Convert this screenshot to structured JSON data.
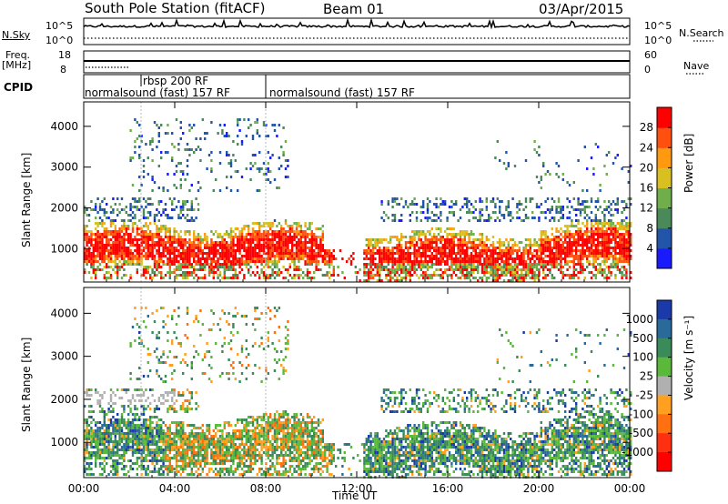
{
  "header": {
    "station": "South Pole Station (fitACF)",
    "beam": "Beam 01",
    "date": "03/Apr/2015"
  },
  "top_panels": {
    "nsky_label": "N.Sky",
    "nsky_ticks": [
      "10^5",
      "10^0"
    ],
    "nsearch_label": "N.Search",
    "nsearch_ticks": [
      "10^5",
      "10^0"
    ],
    "freq_label": "Freq.",
    "freq_unit": "[MHz]",
    "freq_ticks": [
      "18",
      "8"
    ],
    "nave_label": "Nave",
    "nave_ticks": [
      "60",
      "0"
    ],
    "cpid_label": "CPID",
    "cpid_segments": [
      {
        "label": "normalsound (fast) 157 RF"
      },
      {
        "label": "rbsp 200 RF"
      },
      {
        "label": "normalsound (fast) 157 RF"
      }
    ]
  },
  "chart_data": [
    {
      "type": "heatmap",
      "title": "",
      "xlabel": "",
      "ylabel": "Slant Range [km]",
      "x_ticks": [
        "00:00",
        "04:00",
        "08:00",
        "12:00",
        "16:00",
        "20:00",
        "00:00"
      ],
      "xlim_hours": [
        0,
        24
      ],
      "y_ticks": [
        1000,
        2000,
        3000,
        4000
      ],
      "ylim": [
        180,
        4600
      ],
      "colorbar": {
        "label": "Power [dB]",
        "ticks": [
          4,
          8,
          12,
          16,
          20,
          24,
          28
        ],
        "colors": [
          "#1a1aff",
          "#2255aa",
          "#4a8a5a",
          "#6fae4a",
          "#d8c020",
          "#ff9a10",
          "#ff5010",
          "#ff0000"
        ]
      },
      "features": [
        {
          "desc": "strong backscatter band",
          "range_km": [
            700,
            1400
          ],
          "time_h": [
            0,
            24
          ],
          "level_db": 28
        },
        {
          "desc": "weaker scatter",
          "range_km": [
            1500,
            2300
          ],
          "time_h": [
            0,
            24
          ],
          "level_db": 12
        },
        {
          "desc": "sparse high-range scatter",
          "range_km": [
            2500,
            4200
          ],
          "time_h": [
            2,
            9
          ],
          "level_db": 8
        },
        {
          "desc": "data gap",
          "time_h": [
            10.5,
            12.5
          ],
          "range_km": [
            1200,
            4600
          ]
        }
      ]
    },
    {
      "type": "heatmap",
      "title": "",
      "xlabel": "Time UT",
      "ylabel": "Slant Range [km]",
      "x_ticks": [
        "00:00",
        "04:00",
        "08:00",
        "12:00",
        "16:00",
        "20:00",
        "00:00"
      ],
      "xlim_hours": [
        0,
        24
      ],
      "y_ticks": [
        1000,
        2000,
        3000,
        4000
      ],
      "ylim": [
        180,
        4600
      ],
      "colorbar": {
        "label": "Velocity [m s⁻¹]",
        "ticks": [
          "1000",
          "500",
          "100",
          "25",
          "-25",
          "-100",
          "-500",
          "-1000"
        ],
        "colors": [
          "#1a3aaa",
          "#2a6a9a",
          "#3a8a5a",
          "#5ab83a",
          "#b0b0b0",
          "#ffa020",
          "#ff7010",
          "#ff3010",
          "#ff0000"
        ]
      },
      "features": [
        {
          "desc": "mixed green/blue scatter",
          "range_km": [
            500,
            1500
          ],
          "time_h": [
            0,
            24
          ],
          "velocity": "100 to 1000"
        },
        {
          "desc": "orange patches",
          "range_km": [
            600,
            2500
          ],
          "time_h": [
            4,
            11
          ],
          "velocity": "-100 to -500"
        },
        {
          "desc": "grey low velocity",
          "range_km": [
            1900,
            2200
          ],
          "time_h": [
            0,
            4
          ],
          "velocity": "-25 to 25"
        }
      ]
    }
  ]
}
